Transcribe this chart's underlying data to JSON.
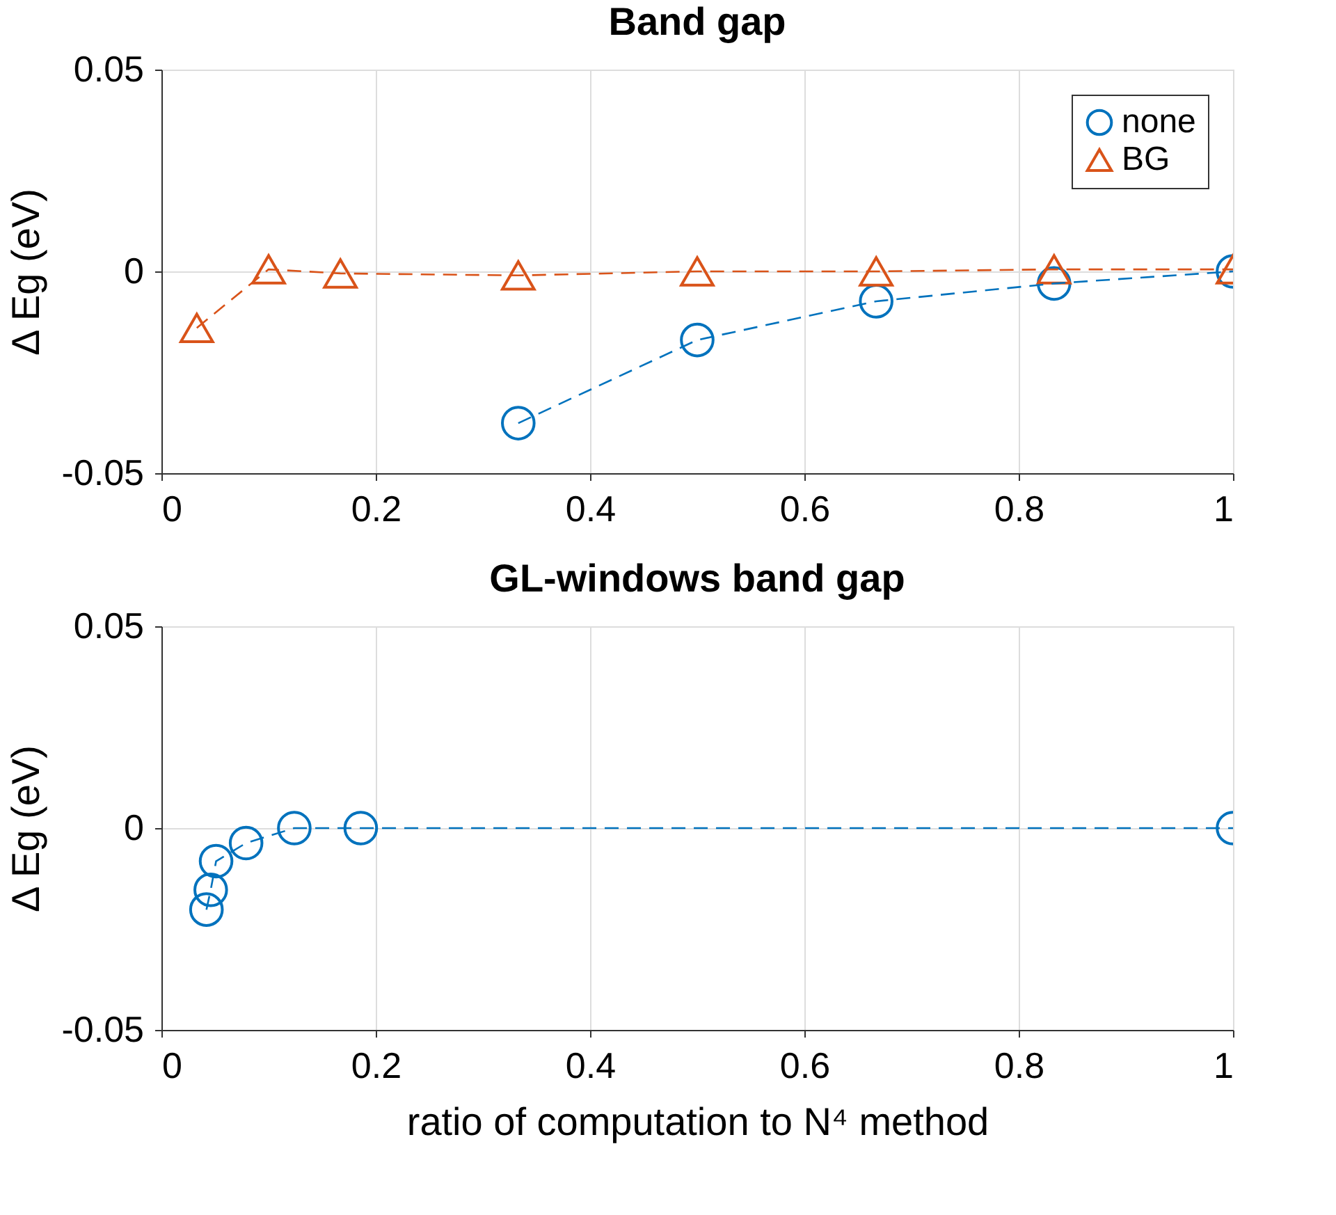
{
  "chart_data": [
    {
      "type": "line",
      "title": "Band gap",
      "ylabel": "Δ Eg (eV)",
      "xlim": [
        0,
        1
      ],
      "ylim": [
        -0.05,
        0.05
      ],
      "xticks": [
        0,
        0.2,
        0.4,
        0.6,
        0.8,
        1
      ],
      "yticks": [
        -0.05,
        0,
        0.05
      ],
      "grid": true,
      "legend": "top right",
      "line_style": "dashed",
      "series": [
        {
          "name": "none",
          "color": "#0072bd",
          "marker": "circle",
          "x": [
            0.333,
            0.5,
            0.667,
            0.833,
            1.0
          ],
          "values": [
            -0.0376,
            -0.017,
            -0.0074,
            -0.003,
            0
          ]
        },
        {
          "name": "BG",
          "color": "#d95319",
          "marker": "triangle",
          "x": [
            0.033,
            0.1,
            0.167,
            0.333,
            0.5,
            0.667,
            0.833,
            1.0
          ],
          "values": [
            -0.014,
            0.0005,
            -0.0005,
            -0.001,
            0,
            0,
            0.0005,
            0.0005
          ]
        }
      ]
    },
    {
      "type": "line",
      "title": "GL-windows band gap",
      "ylabel": "Δ Eg (eV)",
      "xlabel": "ratio of computation to N⁴ method",
      "xlim": [
        0,
        1
      ],
      "ylim": [
        -0.05,
        0.05
      ],
      "xticks": [
        0,
        0.2,
        0.4,
        0.6,
        0.8,
        1
      ],
      "yticks": [
        -0.05,
        0,
        0.05
      ],
      "grid": true,
      "line_style": "dashed",
      "series": [
        {
          "color": "#0072bd",
          "marker": "circle",
          "x": [
            0.042,
            0.046,
            0.051,
            0.079,
            0.124,
            0.186,
            1.0
          ],
          "values": [
            -0.0202,
            -0.0153,
            -0.0082,
            -0.0037,
            0,
            0,
            0
          ]
        }
      ]
    }
  ]
}
